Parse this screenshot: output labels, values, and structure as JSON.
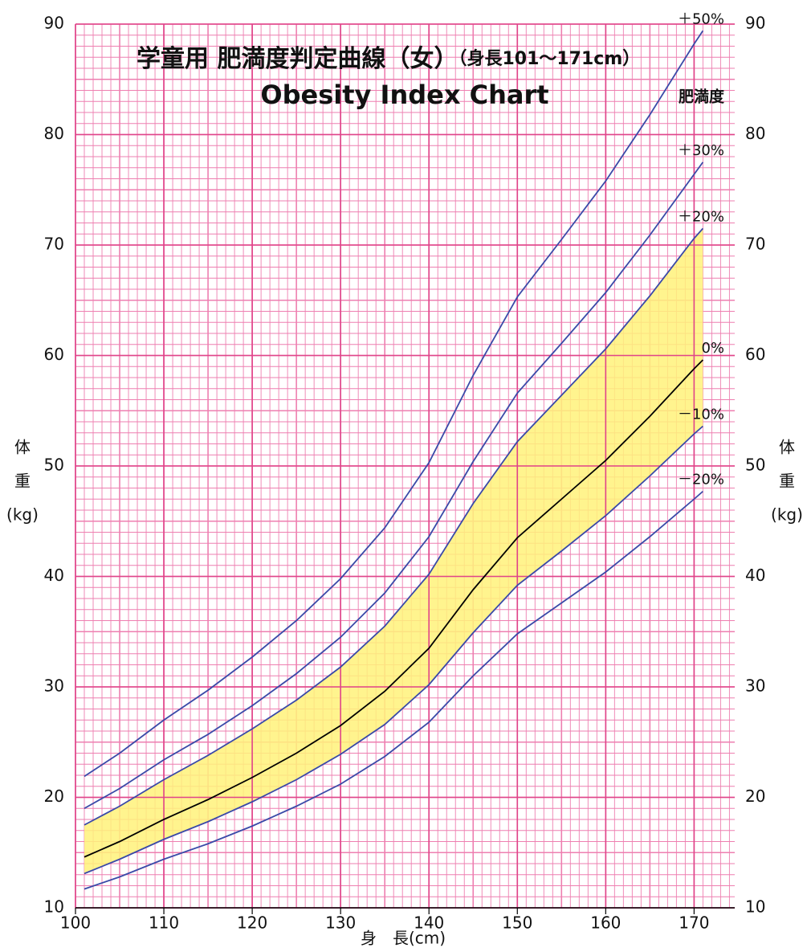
{
  "chart_data": {
    "type": "line",
    "title": "学童用  肥満度判定曲線（女）",
    "title_note": "（身長101～171cm）",
    "subtitle": "Obesity Index Chart",
    "series_label": "肥満度",
    "x_label": "身　長(cm)",
    "y_label": [
      "体",
      "重",
      "(kg)"
    ],
    "x": [
      101,
      105,
      110,
      115,
      120,
      125,
      130,
      135,
      140,
      145,
      150,
      155,
      160,
      165,
      170,
      171
    ],
    "series": [
      {
        "name": "＋50%",
        "color": "#3a4aa8",
        "values": [
          21.9,
          24.0,
          27.0,
          29.7,
          32.7,
          36.0,
          39.8,
          44.4,
          50.3,
          58.2,
          65.3,
          70.5,
          75.8,
          81.8,
          88.2,
          89.4
        ]
      },
      {
        "name": "＋30%",
        "color": "#3a4aa8",
        "values": [
          19.0,
          20.8,
          23.4,
          25.7,
          28.3,
          31.2,
          34.5,
          38.5,
          43.6,
          50.4,
          56.6,
          61.1,
          65.7,
          70.9,
          76.4,
          77.5
        ]
      },
      {
        "name": "＋20%",
        "color": "#3a4aa8",
        "values": [
          17.5,
          19.2,
          21.6,
          23.8,
          26.2,
          28.8,
          31.8,
          35.5,
          40.2,
          46.6,
          52.2,
          56.4,
          60.6,
          65.4,
          70.6,
          71.5
        ]
      },
      {
        "name": "0%",
        "color": "#000000",
        "values": [
          14.6,
          16.0,
          18.0,
          19.8,
          21.8,
          24.0,
          26.5,
          29.6,
          33.5,
          38.8,
          43.5,
          47.0,
          50.5,
          54.5,
          58.8,
          59.6
        ]
      },
      {
        "name": "－10%",
        "color": "#3a4aa8",
        "values": [
          13.1,
          14.4,
          16.2,
          17.8,
          19.6,
          21.6,
          23.9,
          26.6,
          30.2,
          34.9,
          39.2,
          42.3,
          45.5,
          49.1,
          52.9,
          53.6
        ]
      },
      {
        "name": "－20%",
        "color": "#3a4aa8",
        "values": [
          11.7,
          12.8,
          14.4,
          15.8,
          17.4,
          19.2,
          21.2,
          23.7,
          26.8,
          31.0,
          34.8,
          37.6,
          40.4,
          43.6,
          47.0,
          47.7
        ]
      }
    ],
    "band": {
      "upper": "＋20%",
      "lower": "－10%",
      "color": "#fff27a"
    },
    "xlim": [
      100,
      174.6
    ],
    "xticks": [
      100,
      110,
      120,
      130,
      140,
      150,
      160,
      170
    ],
    "ylim": [
      10,
      90
    ],
    "yticks": [
      10,
      20,
      30,
      40,
      50,
      60,
      70,
      80,
      90
    ],
    "y2lim": [
      10,
      90
    ],
    "y2ticks": [
      10,
      20,
      30,
      40,
      50,
      60,
      70,
      80,
      90
    ],
    "grid": true,
    "grid_color": "#ee7fb0"
  }
}
